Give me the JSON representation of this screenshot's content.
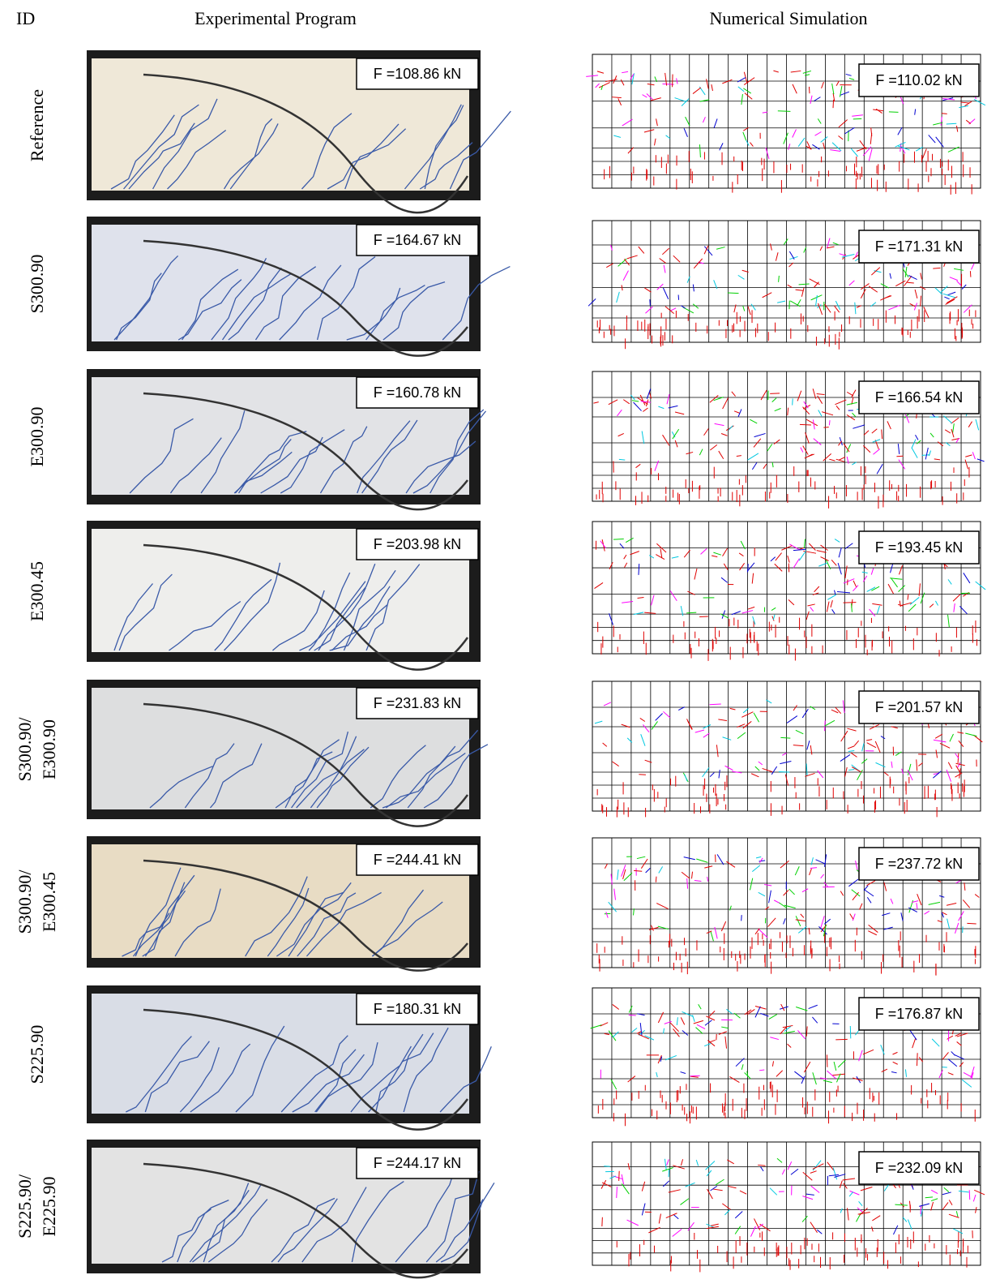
{
  "header": {
    "id": "ID",
    "experimental": "Experimental Program",
    "numerical": "Numerical Simulation"
  },
  "rows": [
    {
      "id": [
        "Reference"
      ],
      "experimental_force": "F =108.86 kN",
      "numerical_force": "F =110.02 kN"
    },
    {
      "id": [
        "S300.90"
      ],
      "experimental_force": "F =164.67 kN",
      "numerical_force": "F =171.31 kN"
    },
    {
      "id": [
        "E300.90"
      ],
      "experimental_force": "F =160.78 kN",
      "numerical_force": "F =166.54 kN"
    },
    {
      "id": [
        "E300.45"
      ],
      "experimental_force": "F =203.98 kN",
      "numerical_force": "F =193.45 kN"
    },
    {
      "id": [
        "S300.90/",
        "E300.90"
      ],
      "experimental_force": "F =231.83 kN",
      "numerical_force": "F =201.57 kN"
    },
    {
      "id": [
        "S300.90/",
        "E300.45"
      ],
      "experimental_force": "F =244.41 kN",
      "numerical_force": "F =237.72 kN"
    },
    {
      "id": [
        "S225.90"
      ],
      "experimental_force": "F =180.31 kN",
      "numerical_force": "F =176.87 kN"
    },
    {
      "id": [
        "S225.90/",
        "E225.90"
      ],
      "experimental_force": "F =244.17 kN",
      "numerical_force": "F =232.09 kN"
    }
  ]
}
